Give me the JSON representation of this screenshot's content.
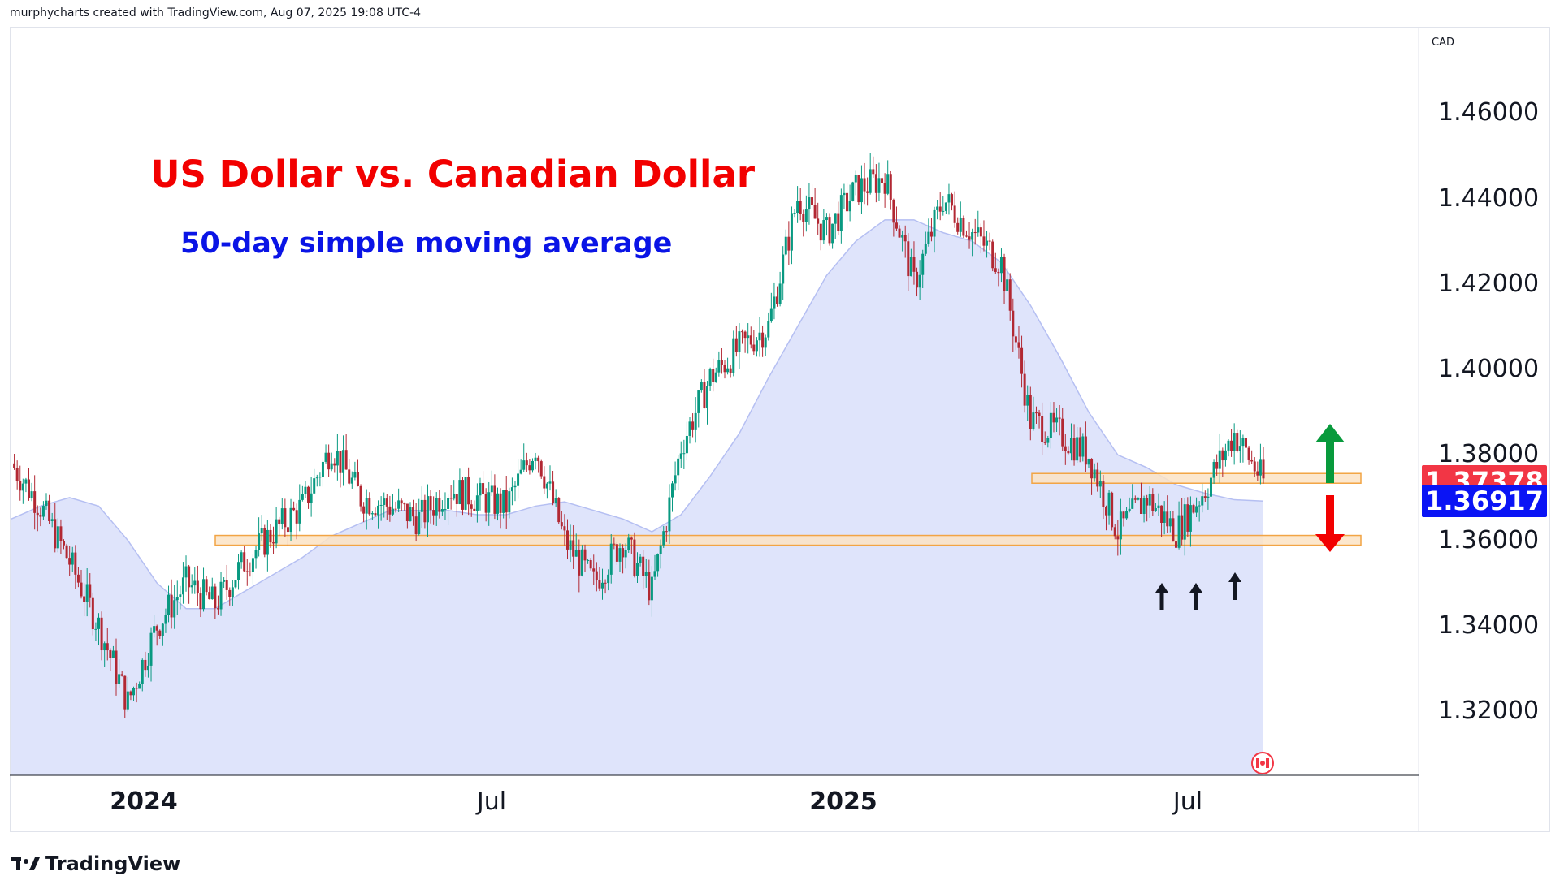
{
  "header": {
    "attribution": "murphycharts created with TradingView.com, Aug 07, 2025 19:08 UTC-4"
  },
  "annotations": {
    "title": "US Dollar vs. Canadian Dollar",
    "subtitle": "50-day simple moving average",
    "support_zone": 1.36,
    "resistance_zone": 1.3745,
    "up_arrow_color": "#089a3c",
    "down_arrow_color": "#f20000",
    "support_touch_arrows": 3
  },
  "price_scale": {
    "currency": "CAD",
    "ticks": [
      "1.46000",
      "1.44000",
      "1.42000",
      "1.40000",
      "1.38000",
      "1.36000",
      "1.34000",
      "1.32000"
    ]
  },
  "badges": {
    "last_price": {
      "value": "1.37378",
      "color": "#f23645"
    },
    "sma_value": {
      "value": "1.36917",
      "color": "#0a14f5"
    }
  },
  "time_scale": {
    "labels": [
      {
        "text": "2024",
        "bold": true
      },
      {
        "text": "Jul",
        "bold": false
      },
      {
        "text": "2025",
        "bold": true
      },
      {
        "text": "Jul",
        "bold": false
      }
    ]
  },
  "colors": {
    "up_candle": "#089981",
    "down_candle": "#b22833",
    "sma_fill": "#dfe4fb",
    "sma_line": "#b5bff2",
    "zone_fill": "#fbe3c4",
    "zone_stroke": "#f2a444"
  },
  "brand": {
    "name": "TradingView"
  },
  "chart_data": {
    "type": "candlestick",
    "title": "US Dollar vs. Canadian Dollar",
    "subtitle": "50-day simple moving average",
    "x": [
      "2023-11-01",
      "2023-11-15",
      "2023-12-01",
      "2023-12-15",
      "2024-01-01",
      "2024-01-15",
      "2024-02-01",
      "2024-02-15",
      "2024-03-01",
      "2024-03-15",
      "2024-04-01",
      "2024-04-15",
      "2024-05-01",
      "2024-05-15",
      "2024-06-01",
      "2024-06-15",
      "2024-07-01",
      "2024-07-15",
      "2024-08-01",
      "2024-08-15",
      "2024-09-01",
      "2024-09-15",
      "2024-10-01",
      "2024-10-15",
      "2024-11-01",
      "2024-11-15",
      "2024-12-01",
      "2024-12-15",
      "2025-01-01",
      "2025-01-15",
      "2025-02-01",
      "2025-02-15",
      "2025-03-01",
      "2025-03-15",
      "2025-04-01",
      "2025-04-15",
      "2025-05-01",
      "2025-05-15",
      "2025-06-01",
      "2025-06-15",
      "2025-07-01",
      "2025-07-15",
      "2025-08-01",
      "2025-08-07"
    ],
    "close": [
      1.378,
      1.368,
      1.355,
      1.34,
      1.322,
      1.34,
      1.35,
      1.345,
      1.355,
      1.362,
      1.368,
      1.382,
      1.37,
      1.368,
      1.365,
      1.372,
      1.37,
      1.368,
      1.382,
      1.36,
      1.35,
      1.36,
      1.348,
      1.382,
      1.398,
      1.405,
      1.41,
      1.44,
      1.432,
      1.442,
      1.445,
      1.42,
      1.44,
      1.432,
      1.425,
      1.388,
      1.385,
      1.38,
      1.362,
      1.37,
      1.362,
      1.372,
      1.385,
      1.37378
    ],
    "sma_50": [
      1.365,
      1.368,
      1.37,
      1.368,
      1.36,
      1.35,
      1.344,
      1.344,
      1.348,
      1.352,
      1.356,
      1.361,
      1.364,
      1.367,
      1.367,
      1.367,
      1.366,
      1.366,
      1.368,
      1.369,
      1.367,
      1.365,
      1.362,
      1.366,
      1.375,
      1.385,
      1.398,
      1.41,
      1.422,
      1.43,
      1.435,
      1.435,
      1.432,
      1.43,
      1.425,
      1.415,
      1.403,
      1.39,
      1.38,
      1.377,
      1.373,
      1.371,
      1.3695,
      1.36917
    ],
    "ylim": [
      1.305,
      1.48
    ],
    "last_price": 1.37378,
    "sma_last": 1.36917,
    "series": [
      {
        "name": "USDCAD"
      }
    ]
  }
}
